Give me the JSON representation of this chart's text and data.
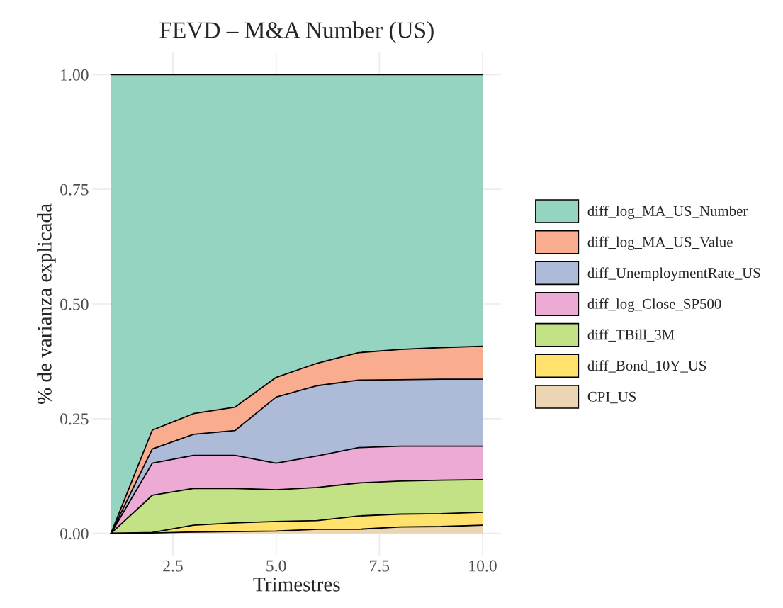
{
  "chart_data": {
    "type": "area",
    "stacked": true,
    "title": "FEVD – M&A Number (US)",
    "xlabel": "Trimestres",
    "ylabel": "% de varianza explicada",
    "x": [
      1,
      2,
      3,
      4,
      5,
      6,
      7,
      8,
      9,
      10
    ],
    "series": [
      {
        "name": "CPI_US",
        "color": "#ecd5b2",
        "values": [
          0,
          0.001,
          0.003,
          0.004,
          0.005,
          0.009,
          0.009,
          0.014,
          0.015,
          0.018
        ]
      },
      {
        "name": "diff_Bond_10Y_US",
        "color": "#ffe16b",
        "values": [
          0,
          0.001,
          0.015,
          0.019,
          0.021,
          0.019,
          0.029,
          0.028,
          0.028,
          0.028
        ]
      },
      {
        "name": "diff_TBill_3M",
        "color": "#c2e285",
        "values": [
          0,
          0.081,
          0.08,
          0.075,
          0.069,
          0.072,
          0.072,
          0.072,
          0.073,
          0.071
        ]
      },
      {
        "name": "diff_log_Close_SP500",
        "color": "#edaad4",
        "values": [
          0,
          0.07,
          0.072,
          0.072,
          0.058,
          0.069,
          0.077,
          0.076,
          0.074,
          0.073
        ]
      },
      {
        "name": "diff_UnemploymentRate_US",
        "color": "#adbad8",
        "values": [
          0,
          0.031,
          0.046,
          0.054,
          0.144,
          0.153,
          0.147,
          0.145,
          0.146,
          0.146
        ]
      },
      {
        "name": "diff_log_MA_US_Value",
        "color": "#f9ad8e",
        "values": [
          0,
          0.041,
          0.045,
          0.051,
          0.043,
          0.049,
          0.06,
          0.066,
          0.069,
          0.072
        ]
      },
      {
        "name": "diff_log_MA_US_Number",
        "color": "#95d4c1",
        "values": [
          1,
          0.775,
          0.739,
          0.725,
          0.66,
          0.629,
          0.606,
          0.599,
          0.595,
          0.592
        ]
      }
    ],
    "xlim": [
      0.55,
      10.45
    ],
    "xticks": [
      {
        "value": 2.5,
        "label": "2.5"
      },
      {
        "value": 5,
        "label": "5.0"
      },
      {
        "value": 7.5,
        "label": "7.5"
      },
      {
        "value": 10,
        "label": "10.0"
      }
    ],
    "ylim": [
      -0.05,
      1.05
    ],
    "yticks": [
      {
        "value": 0,
        "label": "0.00"
      },
      {
        "value": 0.25,
        "label": "0.25"
      },
      {
        "value": 0.5,
        "label": "0.50"
      },
      {
        "value": 0.75,
        "label": "0.75"
      },
      {
        "value": 1,
        "label": "1.00"
      }
    ],
    "grid": true,
    "legend": "right"
  }
}
